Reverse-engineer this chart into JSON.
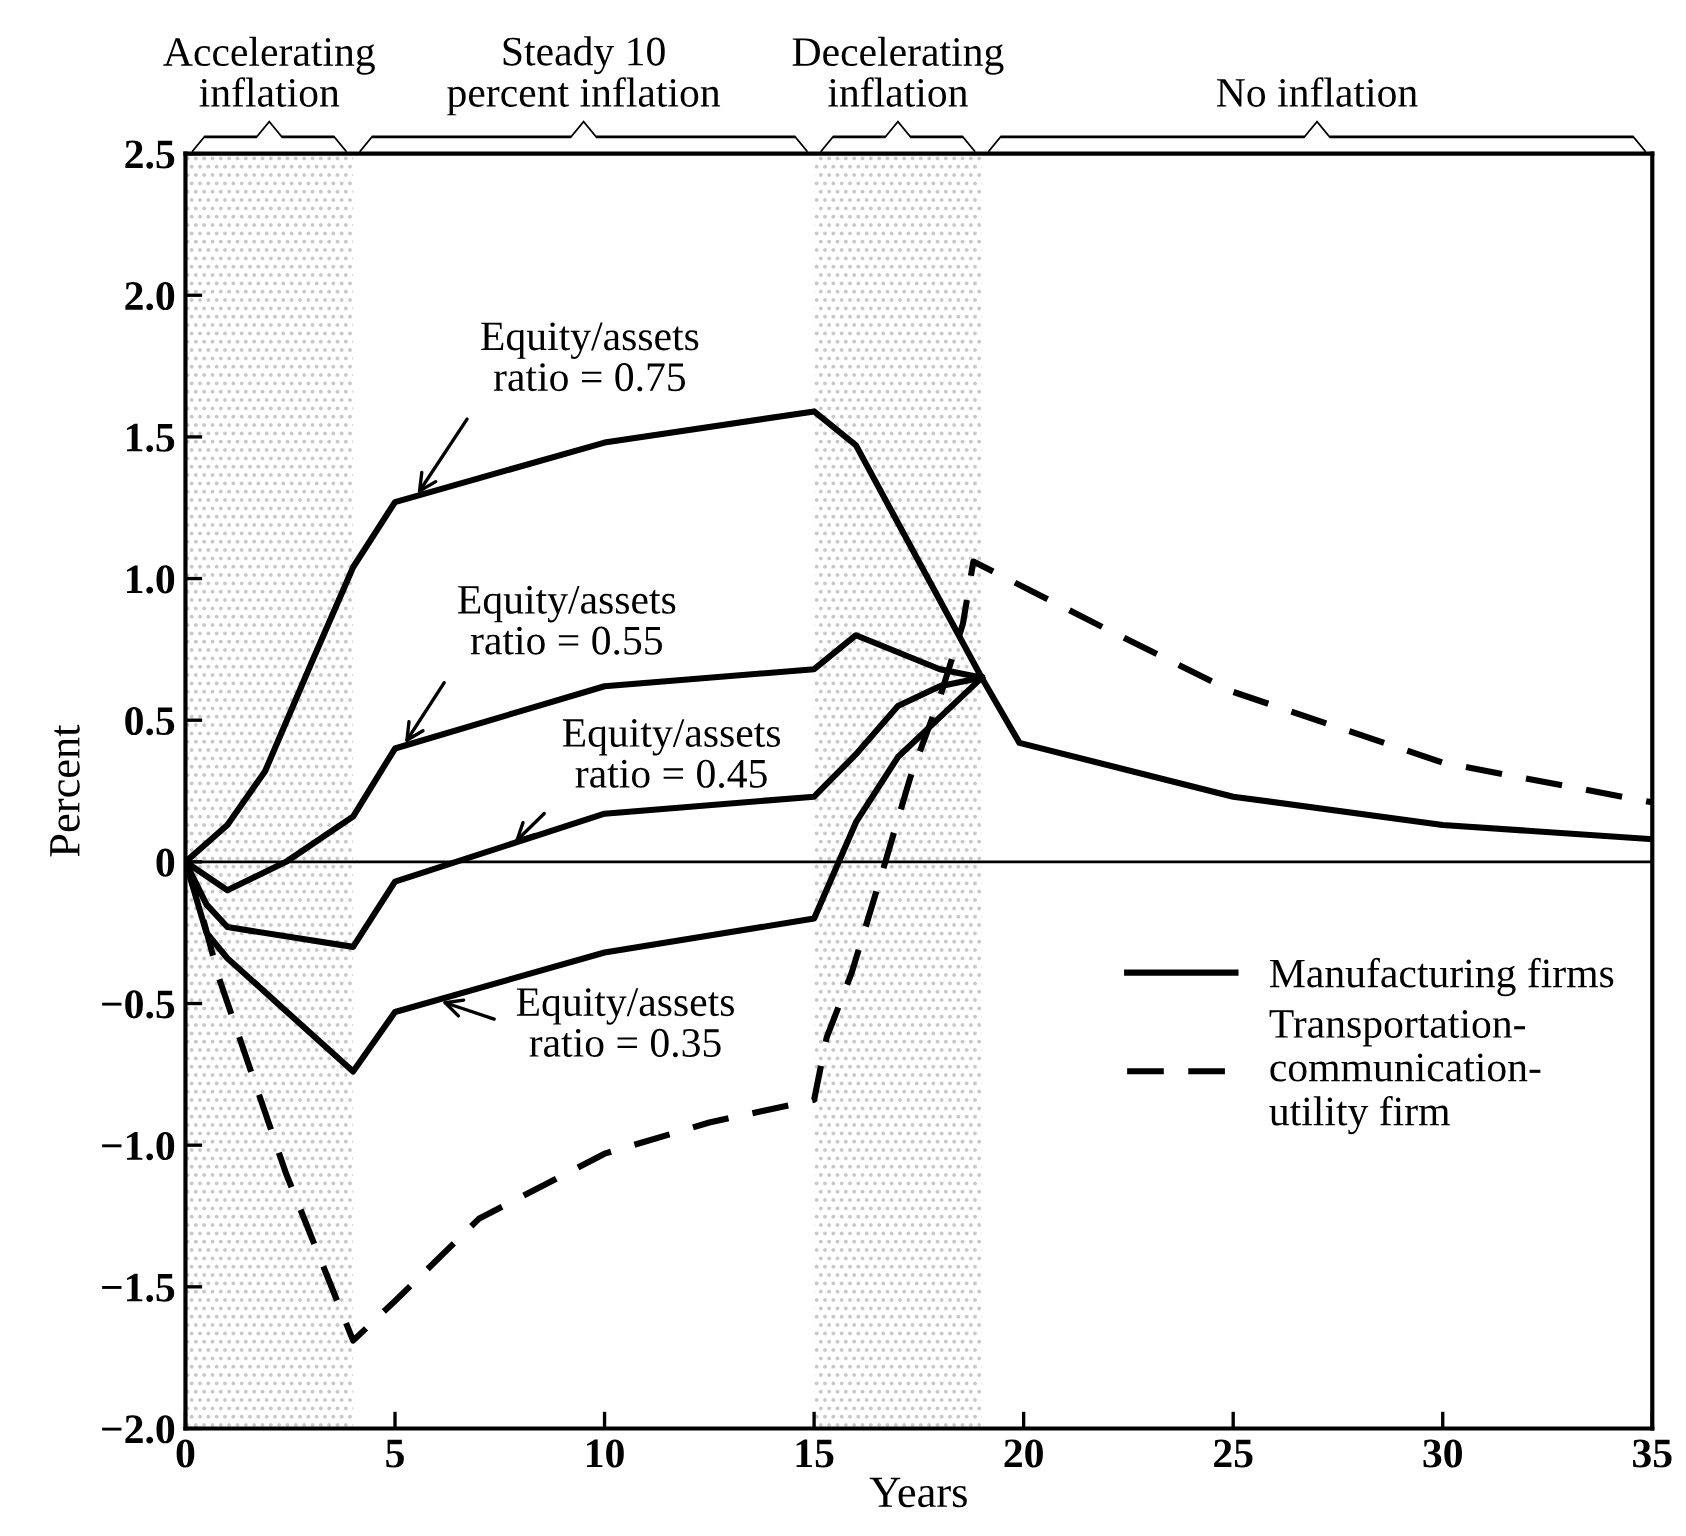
{
  "chart_data": {
    "type": "line",
    "xlabel": "Years",
    "ylabel": "Percent",
    "xlim": [
      0,
      35
    ],
    "xticks": [
      0,
      5,
      10,
      15,
      20,
      25,
      30,
      35
    ],
    "ylim": [
      -2.0,
      2.5
    ],
    "yticks": [
      {
        "value": -2.0,
        "label": "−2.0"
      },
      {
        "value": -1.5,
        "label": "−1.5"
      },
      {
        "value": -1.0,
        "label": "−1.0"
      },
      {
        "value": -0.5,
        "label": "−0.5"
      },
      0,
      {
        "value": 0.5,
        "label": "0.5"
      },
      {
        "value": 1.0,
        "label": "1.0"
      },
      {
        "value": 1.5,
        "label": "1.5"
      },
      {
        "value": 2.0,
        "label": "2.0"
      },
      {
        "value": 2.5,
        "label": "2.5"
      }
    ],
    "grid": false,
    "legend": "center right",
    "marker": "none",
    "series": [
      {
        "name": "Manufacturing firms",
        "color": "#000000",
        "line_style": "solid",
        "x": [
          0,
          1,
          1.9,
          3,
          4,
          5,
          10,
          15,
          16,
          19,
          19.9,
          25,
          30,
          35
        ],
        "values": [
          0,
          0.13,
          0.32,
          0.7,
          1.04,
          1.27,
          1.48,
          1.59,
          1.47,
          0.65,
          0.42,
          0.23,
          0.13,
          0.08
        ]
      },
      {
        "color": "#000000",
        "line_style": "solid",
        "x": [
          0,
          1,
          2.4,
          4,
          5,
          10,
          15,
          16,
          18,
          19
        ],
        "values": [
          0,
          -0.1,
          0,
          0.16,
          0.4,
          0.62,
          0.68,
          0.8,
          0.68,
          0.65
        ]
      },
      {
        "color": "#000000",
        "line_style": "solid",
        "x": [
          0,
          0.5,
          1,
          4,
          5,
          10,
          15,
          16,
          17,
          18,
          19
        ],
        "values": [
          0,
          -0.15,
          -0.23,
          -0.3,
          -0.07,
          0.17,
          0.23,
          0.38,
          0.55,
          0.62,
          0.65
        ]
      },
      {
        "color": "#000000",
        "line_style": "solid",
        "x": [
          0,
          0.5,
          1,
          4,
          5,
          10,
          15,
          16,
          17,
          19
        ],
        "values": [
          0,
          -0.25,
          -0.34,
          -0.74,
          -0.53,
          -0.32,
          -0.2,
          0.14,
          0.37,
          0.65
        ]
      },
      {
        "name": "Transportation-\ncommunication-\nutility firm",
        "color": "#000000",
        "line_style": "dashed",
        "x": [
          0,
          0.33,
          0.8,
          2.4,
          4,
          5,
          7,
          10,
          12.5,
          15,
          15.3,
          15.9,
          16.7,
          17.3,
          18,
          18.55,
          18.8,
          22,
          25,
          30,
          35
        ],
        "values": [
          0,
          -0.15,
          -0.41,
          -1.1,
          -1.69,
          -1.55,
          -1.26,
          -1.03,
          -0.92,
          -0.84,
          -0.62,
          -0.39,
          0,
          0.3,
          0.58,
          0.84,
          1.06,
          0.82,
          0.6,
          0.35,
          0.21
        ]
      }
    ],
    "ref_lines": [
      {
        "axis": "y",
        "value": 0,
        "color": "#000000"
      }
    ],
    "bands": [
      {
        "axis": "x",
        "from": 0,
        "to": 4,
        "label": "Accelerating\ninflation",
        "color": "#c8c8c8"
      },
      {
        "axis": "x",
        "from": 15,
        "to": 19,
        "label": "Decelerating\ninflation",
        "color": "#c8c8c8"
      }
    ],
    "annotations": [
      "Steady 10\npercent inflation",
      "No inflation",
      {
        "text": "Equity/assets\nratio = 0.75",
        "x": 5.5,
        "y": 1.29
      },
      {
        "text": "Equity/assets\nratio = 0.55",
        "x": 5.2,
        "y": 0.41
      },
      {
        "text": "Equity/assets\nratio = 0.45",
        "x": 7.8,
        "y": 0.06
      },
      {
        "text": "Equity/assets\nratio = 0.35",
        "x": 6.05,
        "y": -0.49
      }
    ]
  }
}
